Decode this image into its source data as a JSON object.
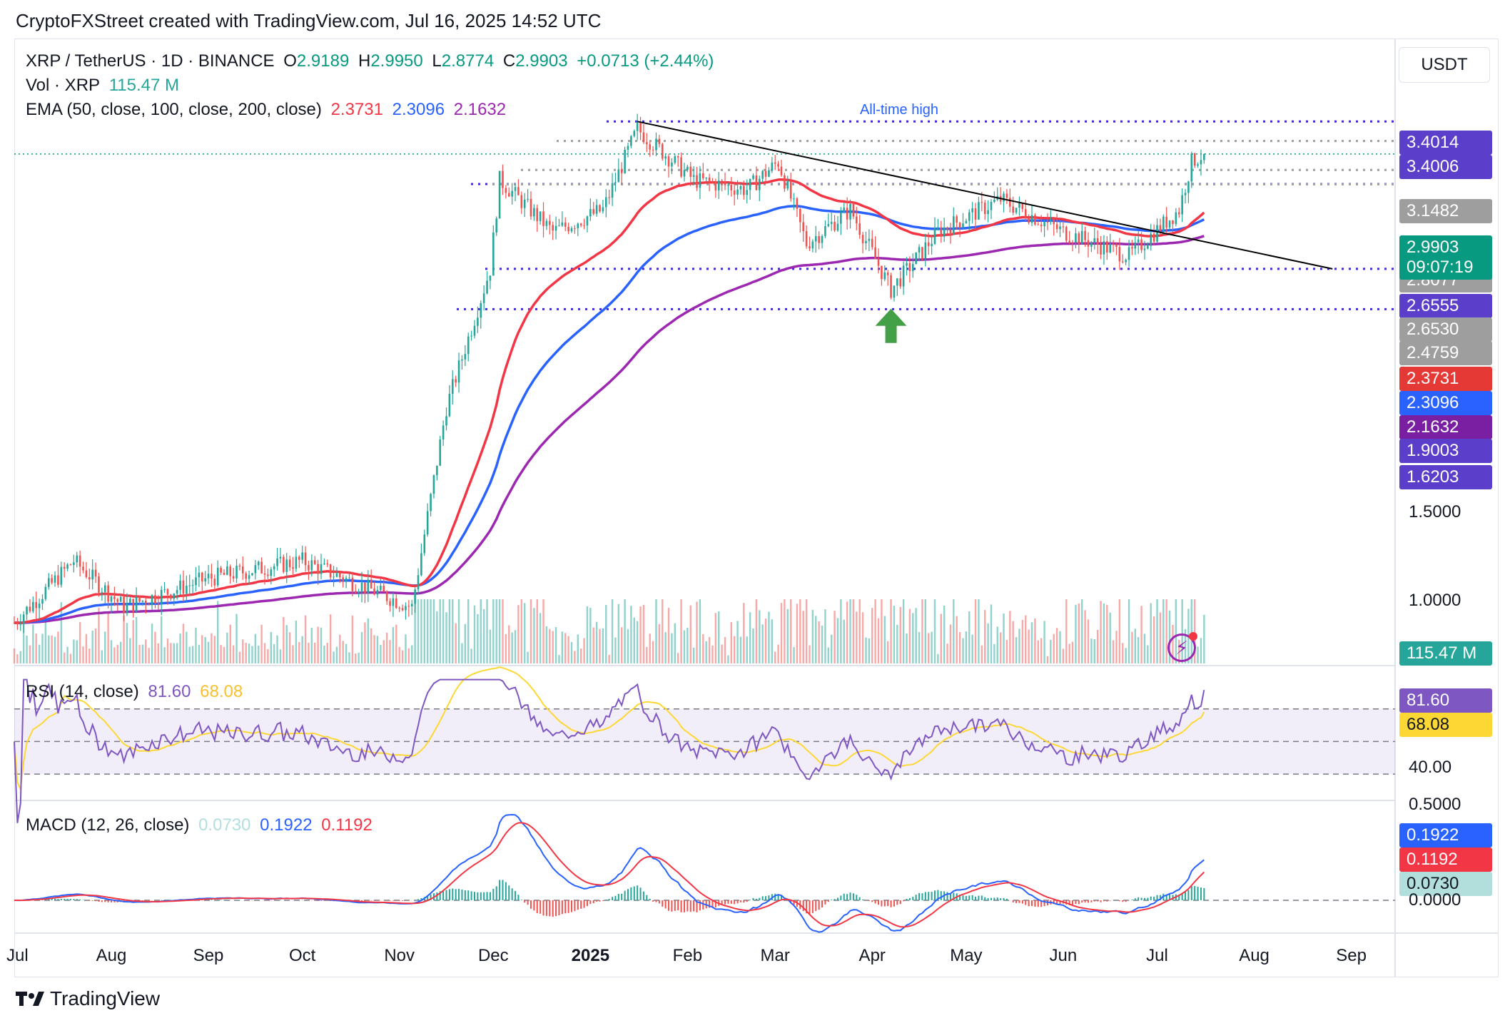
{
  "header": {
    "attribution": "CryptoFXStreet created with TradingView.com, Jul 16, 2025 14:52 UTC"
  },
  "legend": {
    "symbol": "XRP / TetherUS · 1D · BINANCE",
    "o_label": "O",
    "o_value": "2.9189",
    "h_label": "H",
    "h_value": "2.9950",
    "l_label": "L",
    "l_value": "2.8774",
    "c_label": "C",
    "c_value": "2.9903",
    "change": "+0.0713 (+2.44%)",
    "vol_label": "Vol · XRP",
    "vol_value": "115.47 M",
    "ema_label": "EMA (50, close, 100, close, 200, close)",
    "ema50": "2.3731",
    "ema100": "2.3096",
    "ema200": "2.1632",
    "rsi_label": "RSI (14, close)",
    "rsi_value": "81.60",
    "rsi_ma": "68.08",
    "macd_label": "MACD (12, 26, close)",
    "macd_hist": "0.0730",
    "macd_line": "0.1922",
    "macd_signal": "0.1192"
  },
  "currency_button": "USDT",
  "annotation_ath": "All-time high",
  "price_tags": [
    {
      "text": "3.4014",
      "color": "#5b3ec9"
    },
    {
      "text": "3.4006",
      "color": "#5b3ec9"
    },
    {
      "text": "3.1482",
      "color": "#9e9e9e"
    },
    {
      "text": "2.8077",
      "color": "#9e9e9e"
    },
    {
      "text": "2.6555",
      "color": "#5b3ec9"
    },
    {
      "text": "2.6530",
      "color": "#9e9e9e"
    },
    {
      "text": "2.4759",
      "color": "#9e9e9e"
    },
    {
      "text": "2.3731",
      "color": "#e53935"
    },
    {
      "text": "2.3096",
      "color": "#2962ff"
    },
    {
      "text": "2.1632",
      "color": "#7b1fa2"
    },
    {
      "text": "1.9003",
      "color": "#5b3ec9"
    },
    {
      "text": "1.6203",
      "color": "#5b3ec9"
    }
  ],
  "current_price": {
    "price": "2.9903",
    "countdown": "09:07:19",
    "color": "#089981"
  },
  "volume_tag": {
    "text": "115.47 M",
    "color": "#26a69a"
  },
  "price_axis": [
    "1.5000",
    "1.0000"
  ],
  "rsi_axis": [
    "40.00"
  ],
  "rsi_tags": [
    {
      "text": "81.60",
      "color": "#7e57c2"
    },
    {
      "text": "68.08",
      "color": "#fdd835"
    }
  ],
  "macd_axis": [
    "0.5000",
    "0.0000"
  ],
  "macd_tags": [
    {
      "text": "0.1922",
      "color": "#2962ff"
    },
    {
      "text": "0.1192",
      "color": "#f23645"
    },
    {
      "text": "0.0730",
      "color": "#b2dfdb"
    }
  ],
  "time_axis": [
    "Jul",
    "Aug",
    "Sep",
    "Oct",
    "Nov",
    "Dec",
    "2025",
    "Feb",
    "Mar",
    "Apr",
    "May",
    "Jun",
    "Jul",
    "Aug",
    "Sep"
  ],
  "footer": {
    "logo_text": "TradingView"
  },
  "colors": {
    "up": "#26a69a",
    "down": "#ef5350",
    "ema50": "#f23645",
    "ema100": "#2962ff",
    "ema200": "#9c27b0",
    "level": "#3f2bd1",
    "level_grey": "#9e9e9e",
    "trendline": "#000000",
    "arrow": "#43a047"
  },
  "chart_data": {
    "type": "candlestick",
    "symbol": "XRP / TetherUS",
    "interval": "1D",
    "x_range": [
      "2024-07-01",
      "2025-09-15"
    ],
    "y_scale": "log",
    "y_range": [
      0.4,
      3.6
    ],
    "anchors": [
      {
        "date": "2024-07-01",
        "close": 0.47
      },
      {
        "date": "2024-07-20",
        "close": 0.6
      },
      {
        "date": "2024-08-05",
        "close": 0.5
      },
      {
        "date": "2024-09-01",
        "close": 0.56
      },
      {
        "date": "2024-10-01",
        "close": 0.6
      },
      {
        "date": "2024-11-05",
        "close": 0.5
      },
      {
        "date": "2024-11-16",
        "close": 1.1
      },
      {
        "date": "2024-11-30",
        "close": 1.9
      },
      {
        "date": "2024-12-03",
        "close": 2.7
      },
      {
        "date": "2024-12-20",
        "close": 2.2
      },
      {
        "date": "2025-01-05",
        "close": 2.4
      },
      {
        "date": "2025-01-16",
        "close": 3.3
      },
      {
        "date": "2025-02-03",
        "close": 2.7
      },
      {
        "date": "2025-02-20",
        "close": 2.6
      },
      {
        "date": "2025-03-02",
        "close": 2.9
      },
      {
        "date": "2025-03-11",
        "close": 2.1
      },
      {
        "date": "2025-03-25",
        "close": 2.4
      },
      {
        "date": "2025-04-07",
        "close": 1.75
      },
      {
        "date": "2025-04-22",
        "close": 2.2
      },
      {
        "date": "2025-05-12",
        "close": 2.5
      },
      {
        "date": "2025-06-01",
        "close": 2.2
      },
      {
        "date": "2025-06-22",
        "close": 2.0
      },
      {
        "date": "2025-07-08",
        "close": 2.4
      },
      {
        "date": "2025-07-12",
        "close": 2.9
      },
      {
        "date": "2025-07-16",
        "close": 2.9903
      }
    ],
    "ohlc_last": {
      "open": 2.9189,
      "high": 2.995,
      "low": 2.8774,
      "close": 2.9903
    },
    "volume_last": "115.47 M",
    "ema": [
      {
        "name": "EMA 50",
        "last": 2.3731
      },
      {
        "name": "EMA 100",
        "last": 2.3096
      },
      {
        "name": "EMA 200",
        "last": 2.1632
      }
    ],
    "levels": [
      3.4006,
      3.1482,
      2.8077,
      2.6555,
      2.653,
      1.9003,
      1.6203
    ],
    "trendline": [
      {
        "date": "2025-01-16",
        "price": 3.4
      },
      {
        "date": "2025-08-26",
        "price": 1.9
      }
    ],
    "rsi": {
      "length": 14,
      "last": 81.6,
      "ma_last": 68.08,
      "bands": [
        30,
        50,
        70
      ]
    },
    "macd": {
      "fast": 12,
      "slow": 26,
      "hist_last": 0.073,
      "macd_last": 0.1922,
      "signal_last": 0.1192
    }
  }
}
